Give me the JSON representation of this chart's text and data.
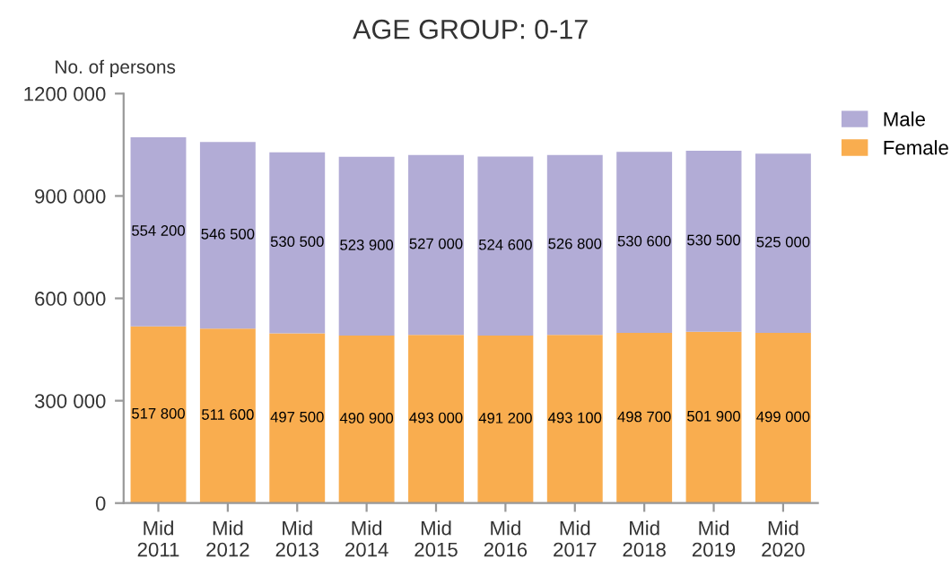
{
  "chart_data": {
    "type": "bar",
    "title": "AGE GROUP: 0-17",
    "ylabel": "No. of persons",
    "stacked": true,
    "legend": "top right",
    "grid": false,
    "categories": [
      "Mid\n2011",
      "Mid\n2012",
      "Mid\n2013",
      "Mid\n2014",
      "Mid\n2015",
      "Mid\n2016",
      "Mid\n2017",
      "Mid\n2018",
      "Mid\n2019",
      "Mid\n2020"
    ],
    "series": [
      {
        "name": "Female",
        "color": "#f9ad4f",
        "values": [
          517800,
          511600,
          497500,
          490900,
          493000,
          491200,
          493100,
          498700,
          501900,
          499000
        ],
        "value_labels": [
          "517 800",
          "511 600",
          "497 500",
          "490 900",
          "493 000",
          "491 200",
          "493 100",
          "498 700",
          "501 900",
          "499 000"
        ]
      },
      {
        "name": "Male",
        "color": "#b2acd6",
        "values": [
          554200,
          546500,
          530500,
          523900,
          527000,
          524600,
          526800,
          530600,
          530500,
          525000
        ],
        "value_labels": [
          "554 200",
          "546 500",
          "530 500",
          "523 900",
          "527 000",
          "524 600",
          "526 800",
          "530 600",
          "530 500",
          "525 000"
        ]
      }
    ],
    "ylim": [
      0,
      1200000
    ],
    "yticks": [
      0,
      {
        "value": 300000,
        "label": "300 000"
      },
      {
        "value": 600000,
        "label": "600 000"
      },
      {
        "value": 900000,
        "label": "900 000"
      },
      {
        "value": 1200000,
        "label": "1200 000"
      }
    ]
  }
}
